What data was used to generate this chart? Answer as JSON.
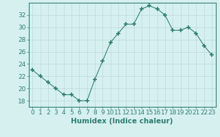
{
  "x": [
    0,
    1,
    2,
    3,
    4,
    5,
    6,
    7,
    8,
    9,
    10,
    11,
    12,
    13,
    14,
    15,
    16,
    17,
    18,
    19,
    20,
    21,
    22,
    23
  ],
  "y": [
    23,
    22,
    21,
    20,
    19,
    19,
    18,
    18,
    21.5,
    24.5,
    27.5,
    29,
    30.5,
    30.5,
    33,
    33.5,
    33,
    32,
    29.5,
    29.5,
    30,
    29,
    27,
    25.5
  ],
  "line_color": "#2e7d6e",
  "marker": "+",
  "marker_size": 4,
  "bg_color": "#d6f0f0",
  "grid_color": "#b8d8d8",
  "tick_color": "#2e7d6e",
  "spine_color": "#2e7d6e",
  "xlabel": "Humidex (Indice chaleur)",
  "ylim": [
    17,
    34
  ],
  "yticks": [
    18,
    20,
    22,
    24,
    26,
    28,
    30,
    32
  ],
  "xticks": [
    0,
    1,
    2,
    3,
    4,
    5,
    6,
    7,
    8,
    9,
    10,
    11,
    12,
    13,
    14,
    15,
    16,
    17,
    18,
    19,
    20,
    21,
    22,
    23
  ],
  "font_size": 6.5,
  "xlabel_font_size": 7.5
}
